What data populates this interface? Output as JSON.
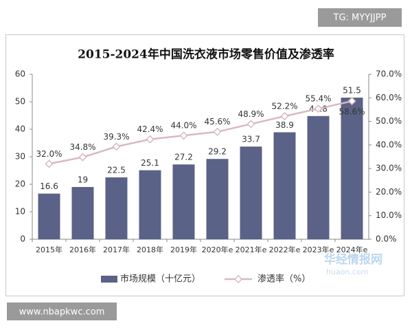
{
  "chart_data": {
    "type": "bar-line",
    "title": "2015-2024年中国洗衣液市场零售价值及渗透率",
    "categories": [
      "2015年",
      "2016年",
      "2017年",
      "2018年",
      "2019年",
      "2020年e",
      "2021年e",
      "2022年e",
      "2023年e",
      "2024年e"
    ],
    "series": [
      {
        "name": "市场规模（十亿元）",
        "type": "bar",
        "color": "#5b6288",
        "values": [
          16.6,
          19,
          22.5,
          25.1,
          27.2,
          29.2,
          33.7,
          38.9,
          44.8,
          51.5
        ]
      },
      {
        "name": "渗透率（%）",
        "type": "line",
        "axis": "y2",
        "color": "#d8b9bf",
        "values": [
          32.0,
          34.8,
          39.3,
          42.4,
          44.0,
          45.6,
          48.9,
          52.2,
          55.4,
          58.6
        ],
        "value_labels": [
          "32.0%",
          "34.8%",
          "39.3%",
          "42.4%",
          "44.0%",
          "45.6%",
          "48.9%",
          "52.2%",
          "55.4%",
          "58.6%"
        ]
      }
    ],
    "ylim": [
      0,
      60
    ],
    "yticks": [
      0,
      10,
      20,
      30,
      40,
      50,
      60
    ],
    "y2lim": [
      0,
      70
    ],
    "y2ticks": [
      {
        "value": 0,
        "label": "0.0%"
      },
      {
        "value": 10,
        "label": "10.0%"
      },
      {
        "value": 20,
        "label": "20.0%"
      },
      {
        "value": 30,
        "label": "30.0%"
      },
      {
        "value": 40,
        "label": "40.0%"
      },
      {
        "value": 50,
        "label": "50.0%"
      },
      {
        "value": 60,
        "label": "60.0%"
      },
      {
        "value": 70,
        "label": "70.0%"
      }
    ],
    "legend": "bottom",
    "annotations": [
      "TG: MYYJJPP",
      "www.nbapkwc.com",
      "华经情报网",
      "huaon.com"
    ]
  }
}
